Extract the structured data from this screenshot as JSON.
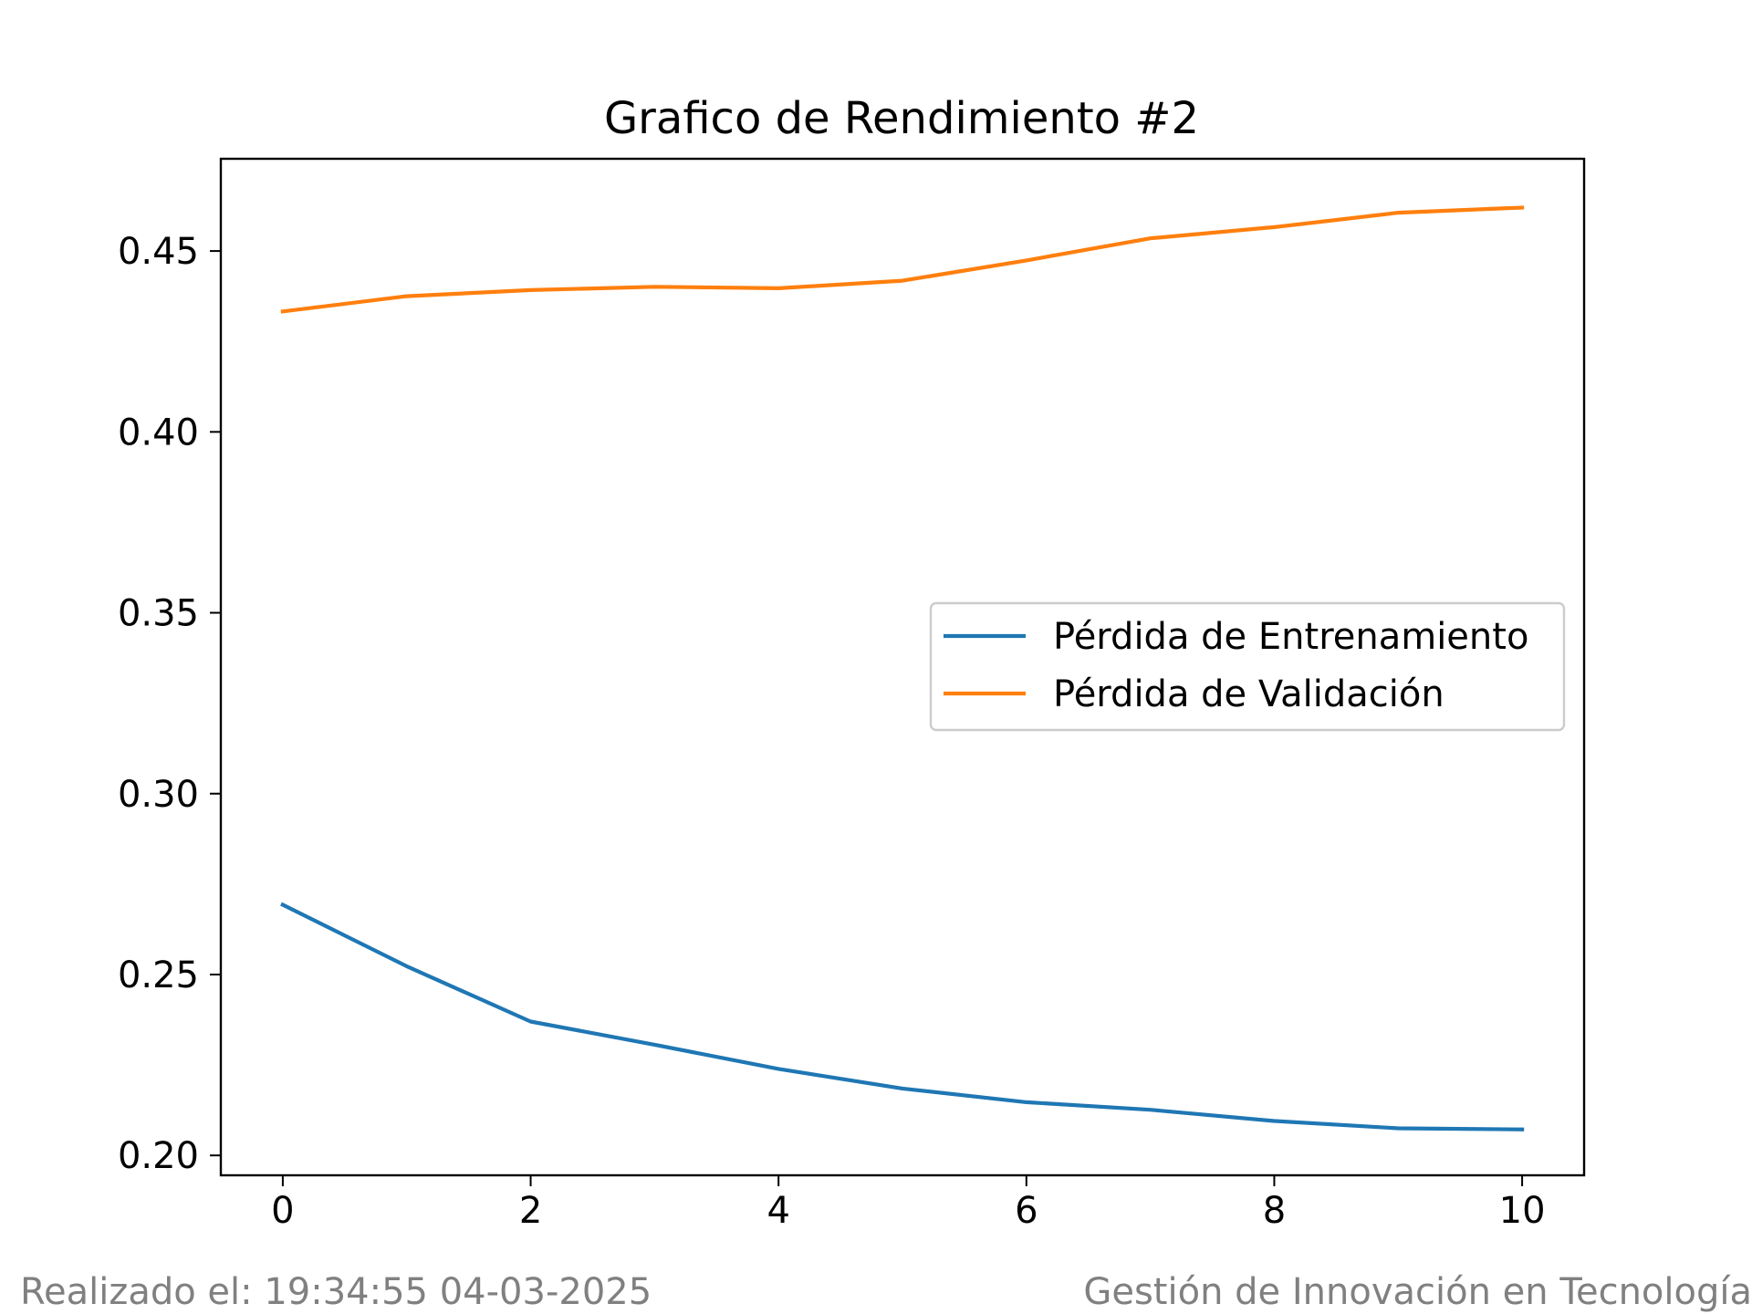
{
  "footer": {
    "left": "Realizado el: 19:34:55 04-03-2025",
    "right": "Gestión de Innovación en Tecnología"
  },
  "chart_data": {
    "type": "line",
    "title": "Grafico de Rendimiento #2",
    "xlabel": "",
    "ylabel": "",
    "xlim": [
      -0.5,
      10.5
    ],
    "ylim": [
      0.1945,
      0.4755
    ],
    "xticks": [
      0,
      2,
      4,
      6,
      8,
      10
    ],
    "yticks": [
      0.2,
      0.25,
      0.3,
      0.35,
      0.4,
      0.45
    ],
    "ytick_labels": [
      "0.20",
      "0.25",
      "0.30",
      "0.35",
      "0.40",
      "0.45"
    ],
    "grid": false,
    "legend_position": "center-right",
    "x": [
      0,
      1,
      2,
      3,
      4,
      5,
      6,
      7,
      8,
      9,
      10
    ],
    "series": [
      {
        "name": "Pérdida de Entrenamiento",
        "color": "#1f77b4",
        "values": [
          0.2693,
          0.2523,
          0.237,
          0.2306,
          0.2239,
          0.2185,
          0.2147,
          0.2126,
          0.2095,
          0.2075,
          0.2072
        ]
      },
      {
        "name": "Pérdida de Validación",
        "color": "#ff7f0e",
        "values": [
          0.4333,
          0.4375,
          0.4392,
          0.4401,
          0.4397,
          0.4418,
          0.4474,
          0.4535,
          0.4566,
          0.4606,
          0.462
        ]
      }
    ]
  }
}
